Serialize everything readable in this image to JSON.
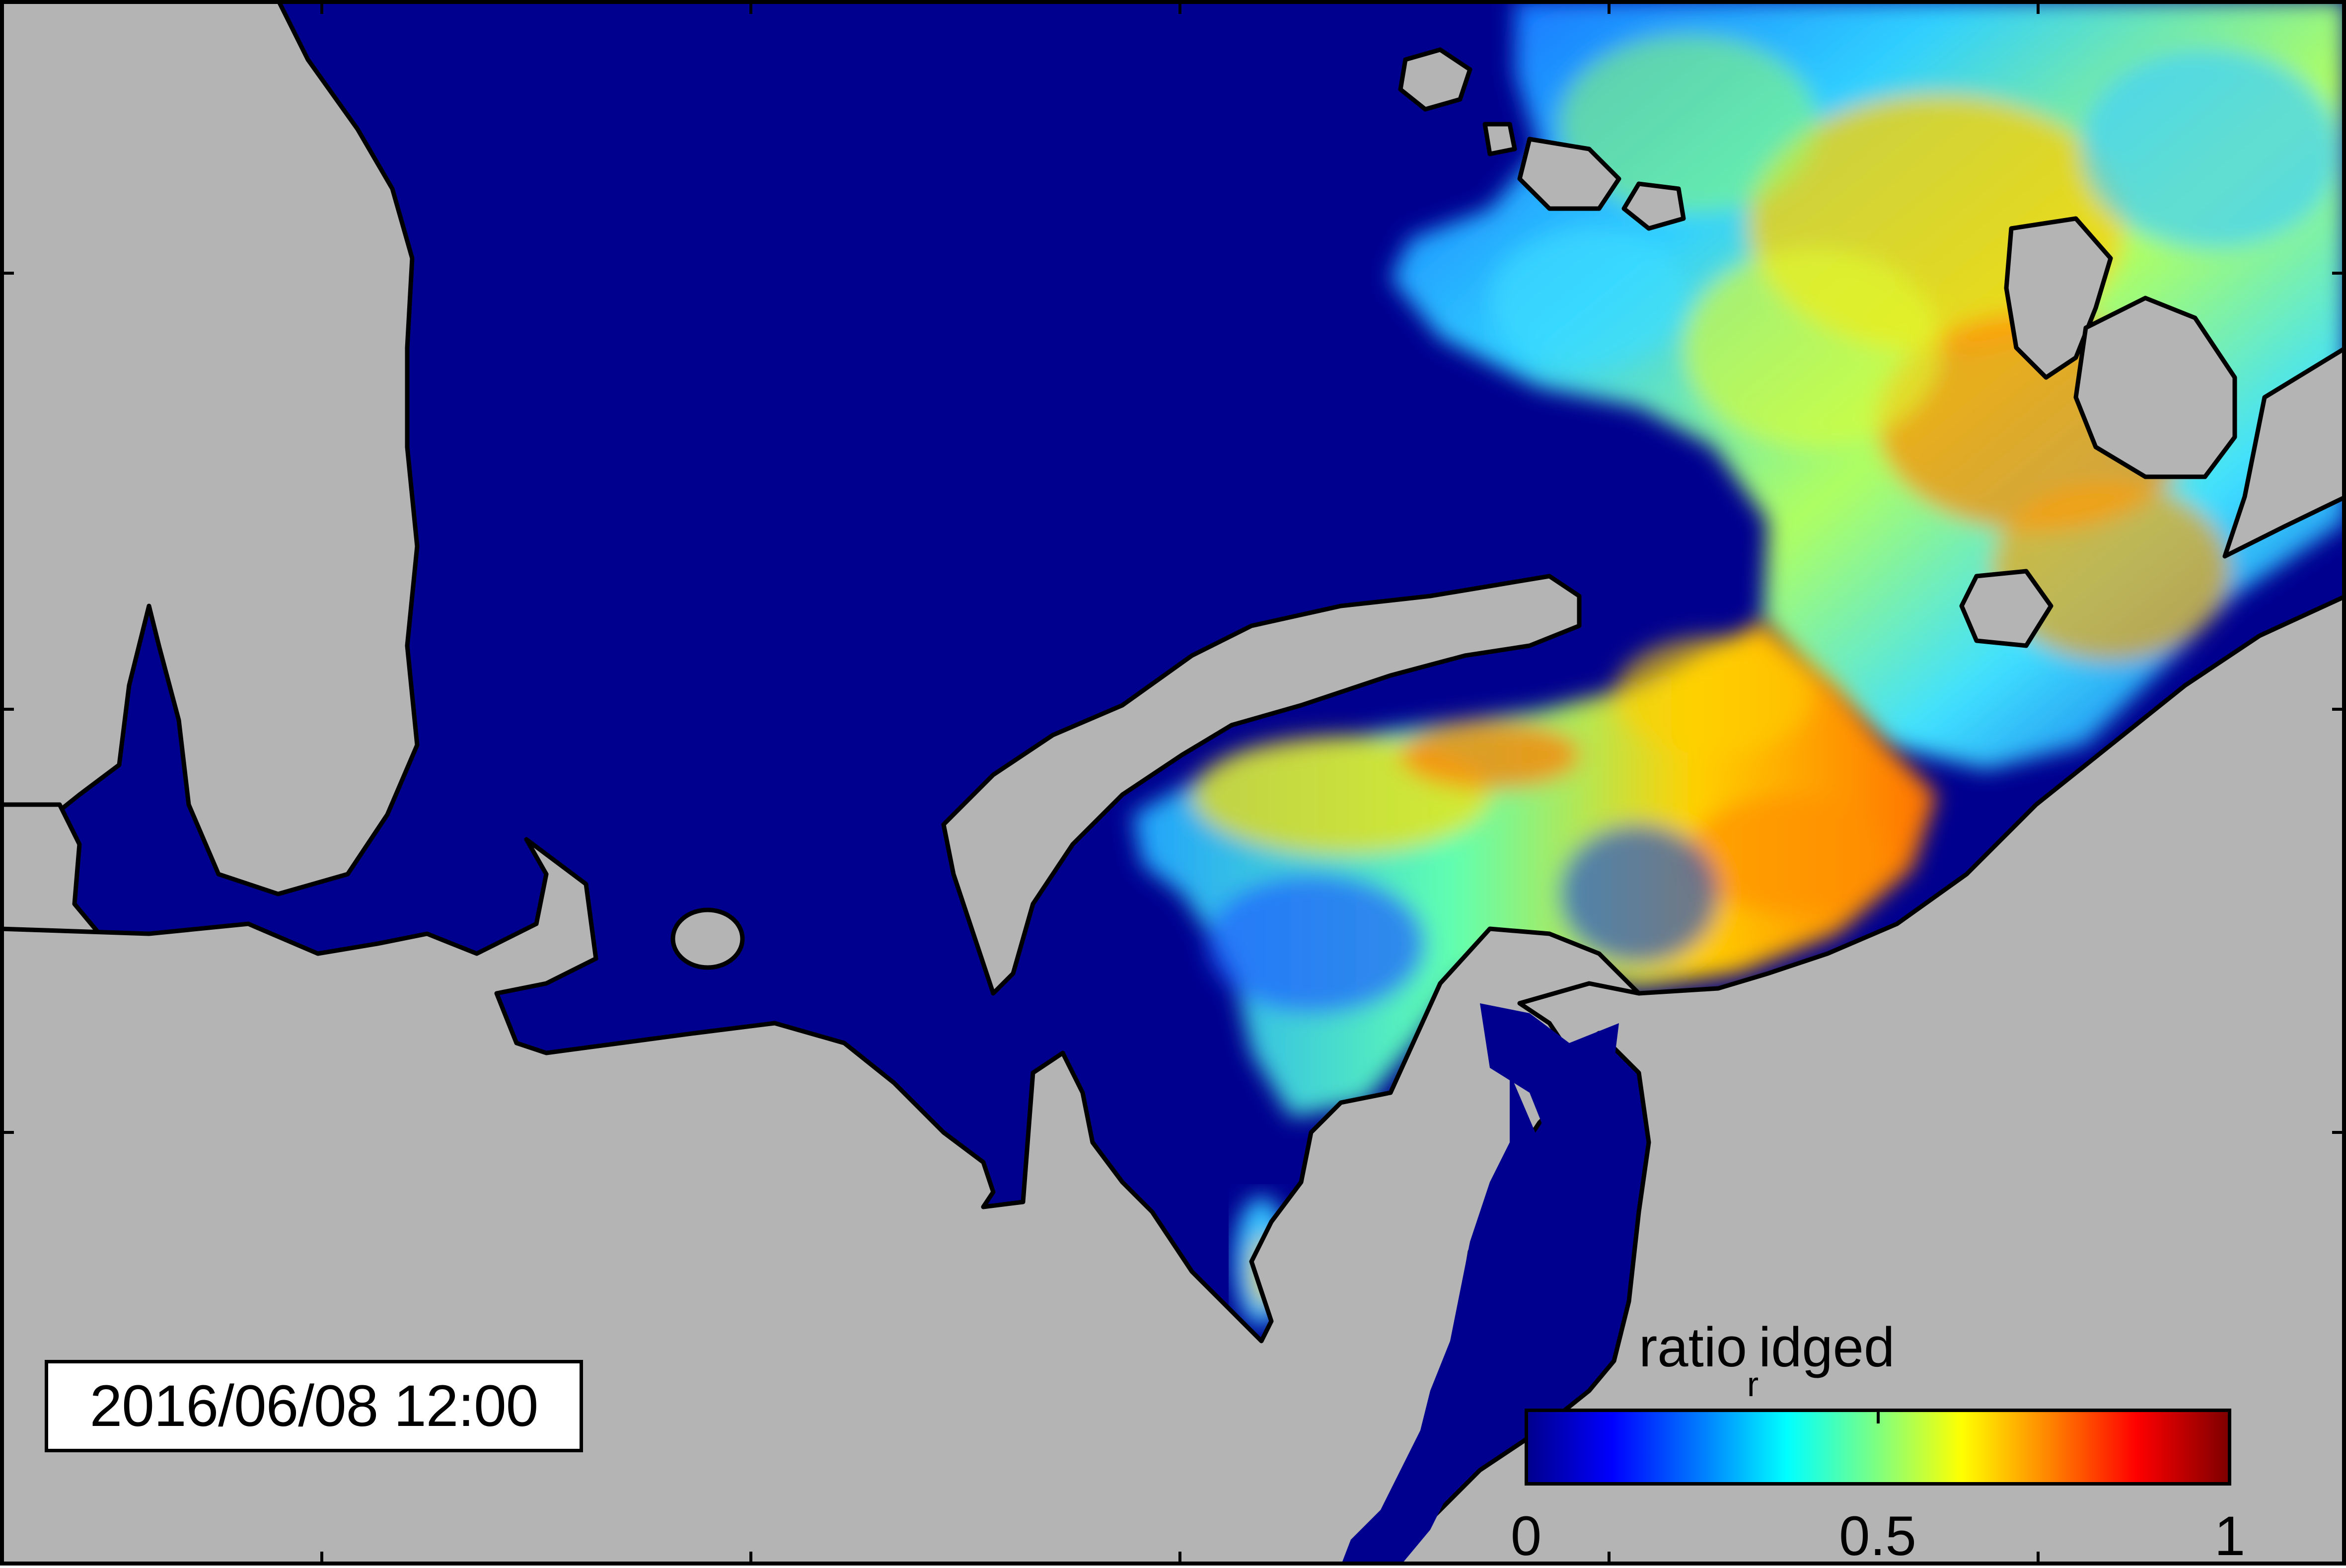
{
  "timestamp": "2016/06/08 12:00",
  "colorbar": {
    "title_main": "ratio",
    "title_sub": "r",
    "title_tail": "idged",
    "tick_labels": [
      "0",
      "0.5",
      "1"
    ],
    "range": [
      0,
      1
    ],
    "colormap": "jet"
  },
  "colors": {
    "ocean_zero": "#00008f",
    "land": "#b4b4b4",
    "border": "#000000"
  }
}
